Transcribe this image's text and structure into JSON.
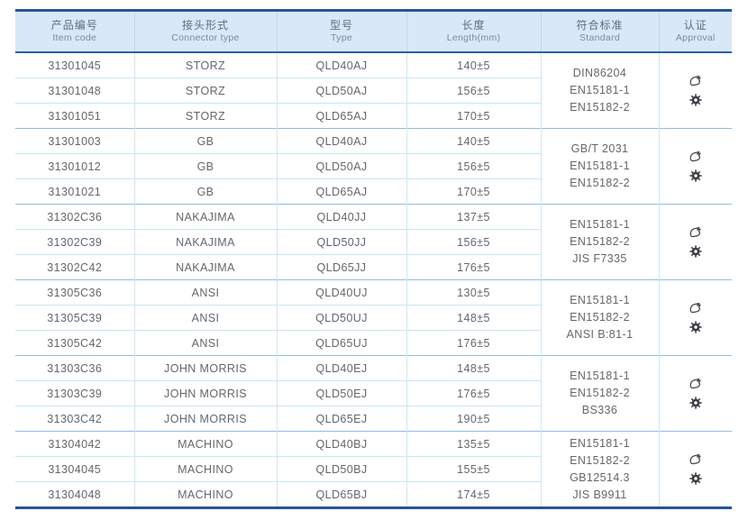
{
  "colors": {
    "accent_navy": "#27549b",
    "header_bg": "#d9e8f7",
    "row_line_light": "#c6e7f1",
    "group_line": "#8fbce4",
    "body_text": "#63676c"
  },
  "table": {
    "headers": [
      {
        "zh": "产品编号",
        "en": "Item code"
      },
      {
        "zh": "接头形式",
        "en": "Connector type"
      },
      {
        "zh": "型号",
        "en": "Type"
      },
      {
        "zh": "长度",
        "en": "Length(mm)"
      },
      {
        "zh": "符合标准",
        "en": "Standard"
      },
      {
        "zh": "认证",
        "en": "Approval"
      }
    ],
    "groups": [
      {
        "rows": [
          {
            "item_code": "31301045",
            "connector_type": "STORZ",
            "type": "QLD40AJ",
            "length": "140±5"
          },
          {
            "item_code": "31301048",
            "connector_type": "STORZ",
            "type": "QLD50AJ",
            "length": "156±5"
          },
          {
            "item_code": "31301051",
            "connector_type": "STORZ",
            "type": "QLD65AJ",
            "length": "170±5"
          }
        ],
        "standards": [
          "DIN86204",
          "EN15181-1",
          "EN15182-2"
        ],
        "approval_icons": [
          "certification-logo-icon",
          "gear-seal-icon"
        ]
      },
      {
        "rows": [
          {
            "item_code": "31301003",
            "connector_type": "GB",
            "type": "QLD40AJ",
            "length": "140±5"
          },
          {
            "item_code": "31301012",
            "connector_type": "GB",
            "type": "QLD50AJ",
            "length": "156±5"
          },
          {
            "item_code": "31301021",
            "connector_type": "GB",
            "type": "QLD65AJ",
            "length": "170±5"
          }
        ],
        "standards": [
          "GB/T 2031",
          "EN15181-1",
          "EN15182-2"
        ],
        "approval_icons": [
          "certification-logo-icon",
          "gear-seal-icon"
        ]
      },
      {
        "rows": [
          {
            "item_code": "31302C36",
            "connector_type": "NAKAJIMA",
            "type": "QLD40JJ",
            "length": "137±5"
          },
          {
            "item_code": "31302C39",
            "connector_type": "NAKAJIMA",
            "type": "QLD50JJ",
            "length": "156±5"
          },
          {
            "item_code": "31302C42",
            "connector_type": "NAKAJIMA",
            "type": "QLD65JJ",
            "length": "176±5"
          }
        ],
        "standards": [
          "EN15181-1",
          "EN15182-2",
          "JIS F7335"
        ],
        "approval_icons": [
          "certification-logo-icon",
          "gear-seal-icon"
        ]
      },
      {
        "rows": [
          {
            "item_code": "31305C36",
            "connector_type": "ANSI",
            "type": "QLD40UJ",
            "length": "130±5"
          },
          {
            "item_code": "31305C39",
            "connector_type": "ANSI",
            "type": "QLD50UJ",
            "length": "148±5"
          },
          {
            "item_code": "31305C42",
            "connector_type": "ANSI",
            "type": "QLD65UJ",
            "length": "176±5"
          }
        ],
        "standards": [
          "EN15181-1",
          "EN15182-2",
          "ANSI B:81-1"
        ],
        "approval_icons": [
          "certification-logo-icon",
          "gear-seal-icon"
        ]
      },
      {
        "rows": [
          {
            "item_code": "31303C36",
            "connector_type": "JOHN MORRIS",
            "type": "QLD40EJ",
            "length": "148±5"
          },
          {
            "item_code": "31303C39",
            "connector_type": "JOHN MORRIS",
            "type": "QLD50EJ",
            "length": "176±5"
          },
          {
            "item_code": "31303C42",
            "connector_type": "JOHN MORRIS",
            "type": "QLD65EJ",
            "length": "190±5"
          }
        ],
        "standards": [
          "EN15181-1",
          "EN15182-2",
          "BS336"
        ],
        "approval_icons": [
          "certification-logo-icon",
          "gear-seal-icon"
        ]
      },
      {
        "rows": [
          {
            "item_code": "31304042",
            "connector_type": "MACHINO",
            "type": "QLD40BJ",
            "length": "135±5"
          },
          {
            "item_code": "31304045",
            "connector_type": "MACHINO",
            "type": "QLD50BJ",
            "length": "155±5"
          },
          {
            "item_code": "31304048",
            "connector_type": "MACHINO",
            "type": "QLD65BJ",
            "length": "174±5"
          }
        ],
        "standards": [
          "EN15181-1",
          "EN15182-2",
          "GB12514.3",
          "JIS B9911"
        ],
        "approval_icons": [
          "certification-logo-icon",
          "gear-seal-icon"
        ]
      }
    ]
  }
}
